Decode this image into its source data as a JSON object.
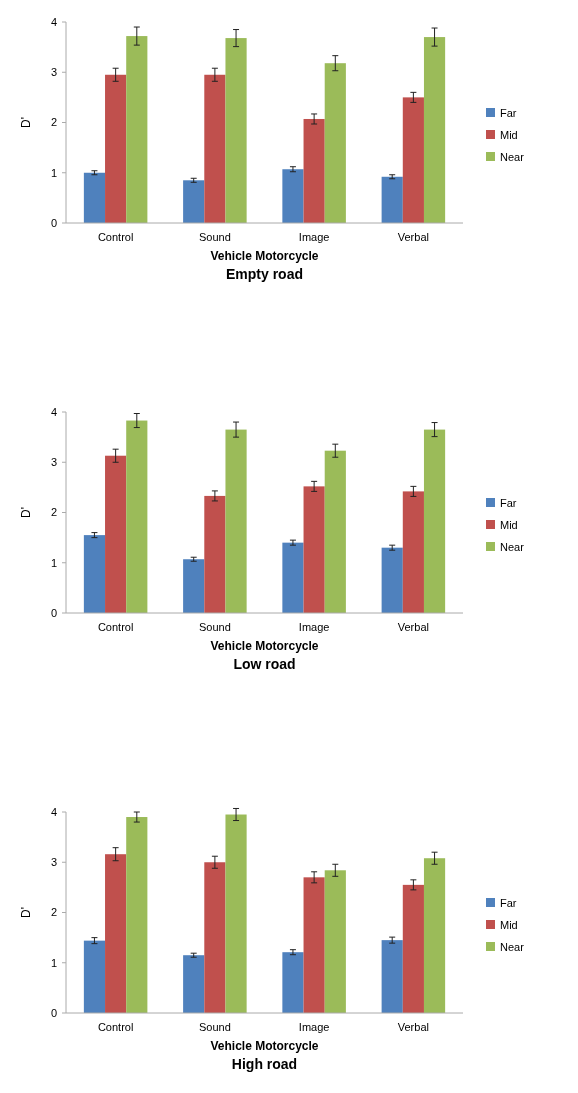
{
  "chart_data": [
    {
      "type": "bar",
      "title": "Empty road",
      "xlabel": "Vehicle Motorcycle",
      "ylabel": "D'",
      "categories": [
        "Control",
        "Sound",
        "Image",
        "Verbal"
      ],
      "ylim": [
        0,
        4
      ],
      "yticks": [
        0,
        1,
        2,
        3,
        4
      ],
      "grid": false,
      "legend": "right",
      "series": [
        {
          "name": "Far",
          "color": "#4f81bd",
          "values": [
            1.0,
            0.85,
            1.07,
            0.92
          ],
          "errors": [
            0.04,
            0.04,
            0.05,
            0.04
          ]
        },
        {
          "name": "Mid",
          "color": "#c0504d",
          "values": [
            2.95,
            2.95,
            2.07,
            2.5
          ],
          "errors": [
            0.13,
            0.13,
            0.1,
            0.1
          ]
        },
        {
          "name": "Near",
          "color": "#9bbb59",
          "values": [
            3.72,
            3.68,
            3.18,
            3.7
          ],
          "errors": [
            0.18,
            0.17,
            0.15,
            0.18
          ]
        }
      ]
    },
    {
      "type": "bar",
      "title": "Low road",
      "xlabel": "Vehicle Motorcycle",
      "ylabel": "D'",
      "categories": [
        "Control",
        "Sound",
        "Image",
        "Verbal"
      ],
      "ylim": [
        0,
        4
      ],
      "yticks": [
        0,
        1,
        2,
        3,
        4
      ],
      "grid": false,
      "legend": "right",
      "series": [
        {
          "name": "Far",
          "color": "#4f81bd",
          "values": [
            1.55,
            1.07,
            1.4,
            1.3
          ],
          "errors": [
            0.05,
            0.04,
            0.05,
            0.05
          ]
        },
        {
          "name": "Mid",
          "color": "#c0504d",
          "values": [
            3.13,
            2.33,
            2.52,
            2.42
          ],
          "errors": [
            0.13,
            0.1,
            0.1,
            0.1
          ]
        },
        {
          "name": "Near",
          "color": "#9bbb59",
          "values": [
            3.83,
            3.65,
            3.23,
            3.65
          ],
          "errors": [
            0.14,
            0.15,
            0.13,
            0.14
          ]
        }
      ]
    },
    {
      "type": "bar",
      "title": "High road",
      "xlabel": "Vehicle Motorcycle",
      "ylabel": "D'",
      "categories": [
        "Control",
        "Sound",
        "Image",
        "Verbal"
      ],
      "ylim": [
        0,
        4
      ],
      "yticks": [
        0,
        1,
        2,
        3,
        4
      ],
      "grid": false,
      "legend": "right",
      "series": [
        {
          "name": "Far",
          "color": "#4f81bd",
          "values": [
            1.44,
            1.15,
            1.21,
            1.45
          ],
          "errors": [
            0.06,
            0.04,
            0.05,
            0.06
          ]
        },
        {
          "name": "Mid",
          "color": "#c0504d",
          "values": [
            3.16,
            3.0,
            2.7,
            2.55
          ],
          "errors": [
            0.13,
            0.12,
            0.11,
            0.1
          ]
        },
        {
          "name": "Near",
          "color": "#9bbb59",
          "values": [
            3.9,
            3.95,
            2.84,
            3.08
          ],
          "errors": [
            0.1,
            0.12,
            0.12,
            0.12
          ]
        }
      ]
    }
  ]
}
